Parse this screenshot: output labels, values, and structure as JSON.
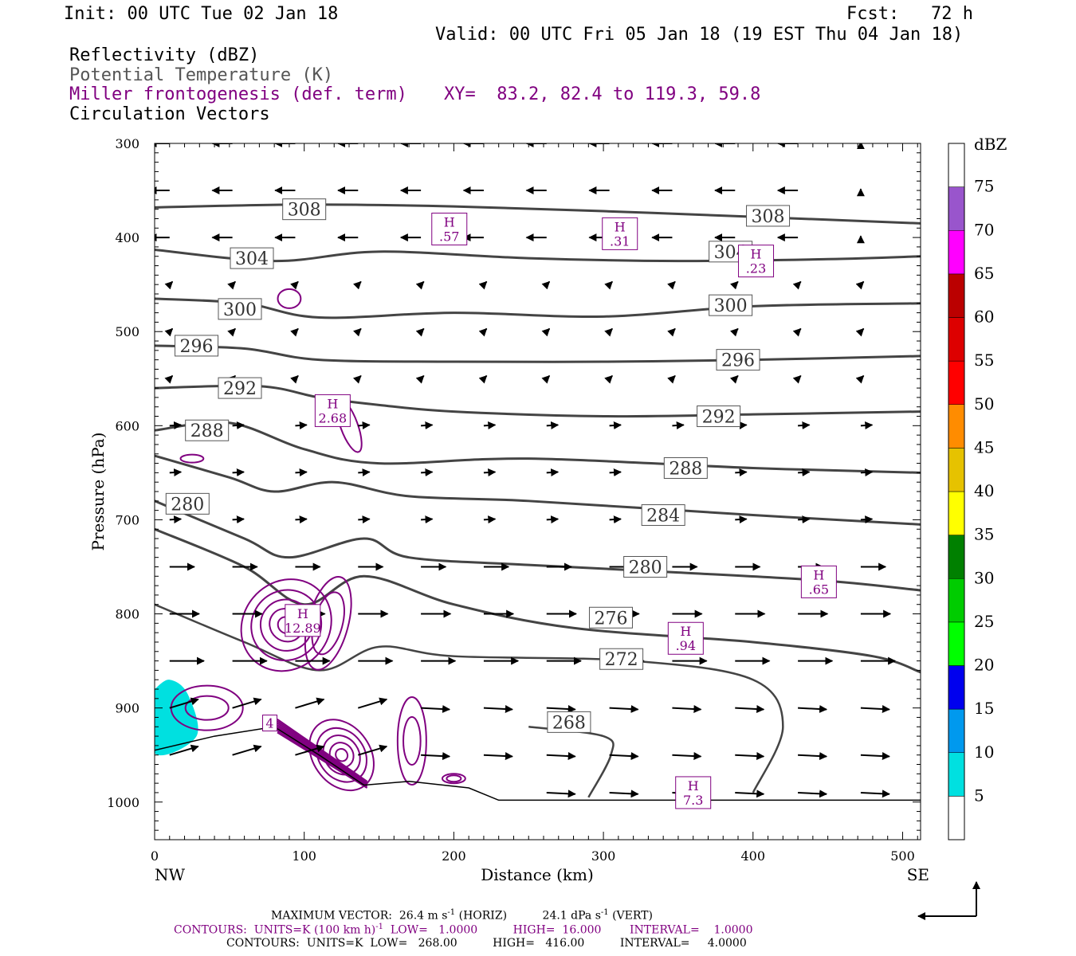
{
  "header": {
    "init": "Init: 00 UTC Tue 02 Jan 18",
    "fcst": "Fcst:   72 h",
    "valid": "Valid: 00 UTC Fri 05 Jan 18 (19 EST Thu 04 Jan 18)",
    "field1": "Reflectivity (dBZ)",
    "field2": "Potential Temperature (K)",
    "field3": "Miller frontogenesis (def. term)",
    "xy": "XY=  83.2, 82.4 to 119.3, 59.8",
    "field4": "Circulation Vectors"
  },
  "colors": {
    "theta": "#444444",
    "frontogenesis": "#800080",
    "reflectivity_5": "#00e0e0"
  },
  "chart_data": {
    "type": "cross-section",
    "xlabel": "Distance (km)",
    "ylabel": "Pressure (hPa)",
    "xlim": [
      0,
      512
    ],
    "ylim": [
      1040,
      300
    ],
    "x_ticks": [
      0,
      100,
      200,
      300,
      400,
      500
    ],
    "y_ticks": [
      300,
      400,
      500,
      600,
      700,
      800,
      900,
      1000
    ],
    "left_end_label": "NW",
    "right_end_label": "SE",
    "colorbar": {
      "title": "dBZ",
      "levels": [
        5,
        10,
        15,
        20,
        25,
        30,
        35,
        40,
        45,
        50,
        55,
        60,
        65,
        70,
        75
      ],
      "colors": [
        "#ffffff",
        "#00e0e0",
        "#0099ee",
        "#0000ee",
        "#00ff00",
        "#00cc00",
        "#008000",
        "#ffff00",
        "#e6c200",
        "#ff8c00",
        "#ff0000",
        "#dd0000",
        "#bb0000",
        "#ff00ff",
        "#9955cc",
        "#ffffff"
      ]
    },
    "theta_contours": [
      {
        "value": 308,
        "label": "308",
        "points": [
          [
            0,
            368
          ],
          [
            100,
            365
          ],
          [
            200,
            367
          ],
          [
            300,
            372
          ],
          [
            400,
            378
          ],
          [
            512,
            385
          ]
        ],
        "label_positions": [
          [
            100,
            370
          ],
          [
            410,
            377
          ]
        ]
      },
      {
        "value": 304,
        "label": "304",
        "points": [
          [
            0,
            413
          ],
          [
            80,
            425
          ],
          [
            150,
            415
          ],
          [
            250,
            422
          ],
          [
            350,
            425
          ],
          [
            450,
            423
          ],
          [
            512,
            420
          ]
        ],
        "label_positions": [
          [
            65,
            422
          ],
          [
            385,
            415
          ]
        ]
      },
      {
        "value": 300,
        "label": "300",
        "points": [
          [
            0,
            465
          ],
          [
            60,
            470
          ],
          [
            110,
            485
          ],
          [
            200,
            480
          ],
          [
            300,
            484
          ],
          [
            400,
            473
          ],
          [
            512,
            470
          ]
        ],
        "label_positions": [
          [
            57,
            476
          ],
          [
            385,
            472
          ]
        ]
      },
      {
        "value": 296,
        "label": "296",
        "points": [
          [
            0,
            515
          ],
          [
            60,
            518
          ],
          [
            110,
            530
          ],
          [
            200,
            532
          ],
          [
            300,
            532
          ],
          [
            400,
            530
          ],
          [
            512,
            526
          ]
        ],
        "label_positions": [
          [
            28,
            515
          ],
          [
            390,
            530
          ]
        ]
      },
      {
        "value": 292,
        "label": "292",
        "points": [
          [
            0,
            560
          ],
          [
            70,
            558
          ],
          [
            110,
            570
          ],
          [
            150,
            578
          ],
          [
            200,
            585
          ],
          [
            300,
            590
          ],
          [
            400,
            588
          ],
          [
            512,
            585
          ]
        ],
        "label_positions": [
          [
            57,
            560
          ],
          [
            377,
            590
          ]
        ]
      },
      {
        "value": 288,
        "label": "288",
        "points": [
          [
            0,
            605
          ],
          [
            50,
            597
          ],
          [
            100,
            625
          ],
          [
            150,
            640
          ],
          [
            250,
            635
          ],
          [
            400,
            645
          ],
          [
            512,
            650
          ]
        ],
        "label_positions": [
          [
            35,
            605
          ],
          [
            355,
            645
          ]
        ]
      },
      {
        "value": 284,
        "label": "284",
        "points": [
          [
            0,
            632
          ],
          [
            50,
            655
          ],
          [
            80,
            670
          ],
          [
            120,
            660
          ],
          [
            170,
            675
          ],
          [
            250,
            680
          ],
          [
            400,
            695
          ],
          [
            512,
            705
          ]
        ],
        "label_positions": [
          [
            340,
            695
          ]
        ]
      },
      {
        "value": 280,
        "label": "280",
        "points": [
          [
            0,
            680
          ],
          [
            60,
            720
          ],
          [
            90,
            740
          ],
          [
            140,
            720
          ],
          [
            170,
            740
          ],
          [
            250,
            748
          ],
          [
            350,
            756
          ],
          [
            450,
            765
          ],
          [
            512,
            775
          ]
        ],
        "label_positions": [
          [
            22,
            683
          ],
          [
            328,
            750
          ]
        ]
      },
      {
        "value": 276,
        "label": "276",
        "points": [
          [
            0,
            710
          ],
          [
            60,
            750
          ],
          [
            100,
            790
          ],
          [
            140,
            760
          ],
          [
            200,
            790
          ],
          [
            280,
            815
          ],
          [
            400,
            830
          ],
          [
            480,
            845
          ],
          [
            512,
            862
          ]
        ],
        "label_positions": [
          [
            305,
            804
          ]
        ]
      },
      {
        "value": 272,
        "label": "272",
        "points": [
          [
            0,
            790
          ],
          [
            60,
            830
          ],
          [
            110,
            860
          ],
          [
            150,
            835
          ],
          [
            200,
            845
          ],
          [
            320,
            850
          ],
          [
            400,
            870
          ],
          [
            420,
            920
          ],
          [
            400,
            990
          ]
        ],
        "label_positions": [
          [
            312,
            848
          ]
        ]
      },
      {
        "value": 268,
        "label": "268",
        "points": [
          [
            250,
            920
          ],
          [
            300,
            930
          ],
          [
            305,
            950
          ],
          [
            290,
            995
          ]
        ],
        "label_positions": [
          [
            277,
            915
          ]
        ]
      }
    ],
    "frontogenesis_maxima": [
      {
        "label": "H",
        "value": ".57",
        "x": 197,
        "p": 391
      },
      {
        "label": "H",
        "value": ".31",
        "x": 311,
        "p": 396
      },
      {
        "label": "H",
        "value": ".23",
        "x": 402,
        "p": 425
      },
      {
        "label": "H",
        "value": "2.68",
        "x": 119,
        "p": 584
      },
      {
        "label": "H",
        "value": "12.89",
        "x": 99,
        "p": 807
      },
      {
        "label": "H",
        "value": ".94",
        "x": 355,
        "p": 826
      },
      {
        "label": "H",
        "value": ".65",
        "x": 444,
        "p": 766
      },
      {
        "label": "H",
        "value": "7.3",
        "x": 360,
        "p": 990
      },
      {
        "label": "",
        "value": "4",
        "x": 77,
        "p": 916
      }
    ],
    "ground_profile": [
      [
        0,
        945
      ],
      [
        40,
        930
      ],
      [
        80,
        920
      ],
      [
        110,
        950
      ],
      [
        140,
        982
      ],
      [
        170,
        978
      ],
      [
        210,
        985
      ],
      [
        230,
        998
      ],
      [
        512,
        998
      ]
    ]
  },
  "footer": {
    "line1a": "MAXIMUM VECTOR:  26.4 m s",
    "sup1": "-1",
    "line1b": " (HORIZ)          24.1 dPa s",
    "sup2": "-1",
    "line1c": " (VERT)",
    "line2a": "CONTOURS:  UNITS=K (100 km h)",
    "sup3": "-1",
    "line2b": "  LOW=   1.0000          HIGH=  16.000        INTERVAL=    1.0000",
    "line3": "CONTOURS:  UNITS=K  LOW=   268.00          HIGH=   416.00          INTERVAL=     4.0000"
  }
}
